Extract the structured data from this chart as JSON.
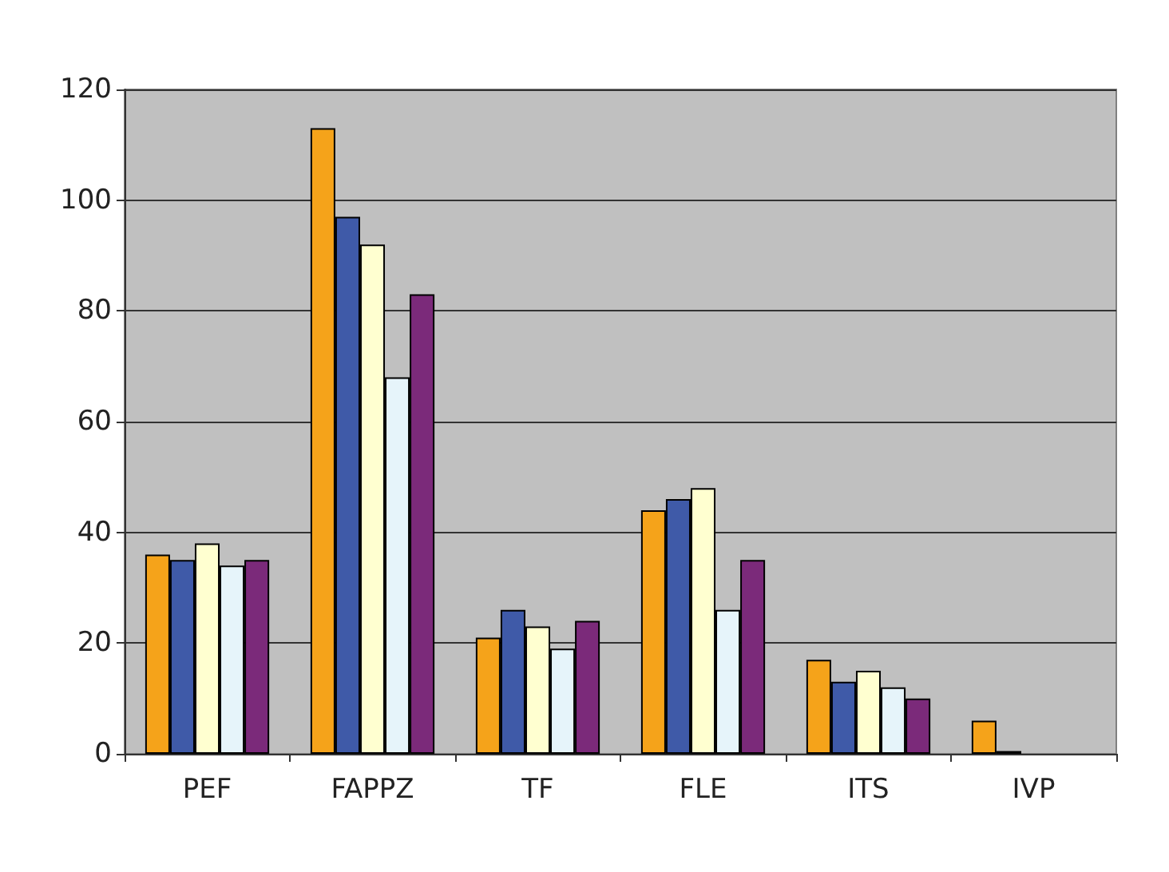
{
  "chart_data": {
    "type": "bar",
    "categories": [
      "PEF",
      "FAPPZ",
      "TF",
      "FLE",
      "ITS",
      "IVP"
    ],
    "series": [
      {
        "color": "#f5a31a",
        "values": [
          36,
          113,
          21,
          44,
          17,
          6
        ]
      },
      {
        "color": "#3f5aa8",
        "values": [
          35,
          97,
          26,
          46,
          13,
          0.5
        ]
      },
      {
        "color": "#ffffd0",
        "values": [
          38,
          92,
          23,
          48,
          15,
          0
        ]
      },
      {
        "color": "#e6f4fa",
        "values": [
          34,
          68,
          19,
          26,
          12,
          0
        ]
      },
      {
        "color": "#7b2a7a",
        "values": [
          35,
          83,
          24,
          35,
          10,
          0
        ]
      }
    ],
    "ylim": [
      0,
      120
    ],
    "yticks": [
      0,
      20,
      40,
      60,
      80,
      100,
      120
    ],
    "grid": "y"
  }
}
